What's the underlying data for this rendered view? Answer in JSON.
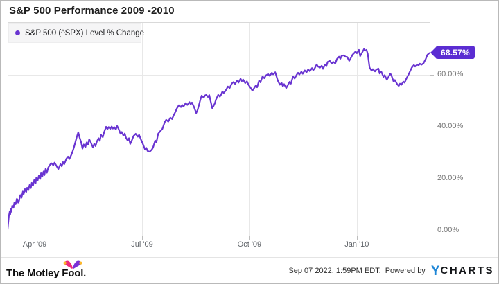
{
  "header": {
    "title": "S&P 500 Performance 2009 -2010"
  },
  "legend": {
    "label": "S&P 500 (^SPX) Level % Change"
  },
  "badge": {
    "text": "68.57%"
  },
  "footer": {
    "brand_text": "The Motley Fool.",
    "timestamp": "Sep 07 2022, 1:59PM EDT.",
    "powered_by": "Powered by",
    "ycharts_y": "Y",
    "ycharts_rest": "CHARTS"
  },
  "colors": {
    "series_purple": "#6934d1",
    "badge_purple": "#5b2dd2",
    "ycharts_blue": "#1e86d6",
    "fool_pink": "#ee2a7b",
    "fool_purple": "#7b2fd6",
    "fool_gold": "#fdb92a",
    "grid": "#e8e8e8",
    "frame": "#d9d9d9",
    "axis": "#8f8f8f"
  },
  "chart_data": {
    "type": "line",
    "title": "S&P 500 Performance 2009 -2010",
    "xlabel": "",
    "ylabel": "",
    "y_unit": "% change",
    "xlim": [
      0,
      1
    ],
    "ylim": [
      -2.13,
      80.27
    ],
    "grid": true,
    "legend_position": "top-left",
    "x_ticks": [
      {
        "label": "Apr '09",
        "t": 0.064
      },
      {
        "label": "Jul '09",
        "t": 0.318
      },
      {
        "label": "Oct '09",
        "t": 0.572
      },
      {
        "label": "Jan '10",
        "t": 0.826
      }
    ],
    "y_ticks": [
      {
        "label": "0.00%",
        "value": 0
      },
      {
        "label": "20.00%",
        "value": 20
      },
      {
        "label": "40.00%",
        "value": 40
      },
      {
        "label": "60.00%",
        "value": 60
      }
    ],
    "series": [
      {
        "name": "S&P 500 (^SPX) Level % Change",
        "color": "#6934d1",
        "last_value": 68.57,
        "last_value_label": "68.57%",
        "points": [
          [
            0.0,
            0.5
          ],
          [
            0.003,
            5.6
          ],
          [
            0.005,
            7.5
          ],
          [
            0.006,
            6.2
          ],
          [
            0.008,
            8.3
          ],
          [
            0.009,
            7.3
          ],
          [
            0.011,
            9.6
          ],
          [
            0.014,
            8.8
          ],
          [
            0.016,
            10.9
          ],
          [
            0.019,
            10.2
          ],
          [
            0.022,
            12.3
          ],
          [
            0.025,
            10.8
          ],
          [
            0.027,
            11.5
          ],
          [
            0.03,
            13.7
          ],
          [
            0.033,
            12.7
          ],
          [
            0.036,
            15.1
          ],
          [
            0.038,
            14.1
          ],
          [
            0.041,
            16.0
          ],
          [
            0.044,
            14.9
          ],
          [
            0.046,
            16.5
          ],
          [
            0.049,
            15.6
          ],
          [
            0.052,
            17.6
          ],
          [
            0.055,
            16.4
          ],
          [
            0.057,
            18.4
          ],
          [
            0.06,
            17.3
          ],
          [
            0.063,
            19.5
          ],
          [
            0.066,
            18.2
          ],
          [
            0.068,
            20.5
          ],
          [
            0.071,
            19.3
          ],
          [
            0.074,
            21.2
          ],
          [
            0.077,
            19.9
          ],
          [
            0.079,
            22.1
          ],
          [
            0.082,
            20.8
          ],
          [
            0.085,
            22.8
          ],
          [
            0.087,
            21.4
          ],
          [
            0.09,
            23.9
          ],
          [
            0.093,
            22.3
          ],
          [
            0.096,
            24.3
          ],
          [
            0.098,
            24.8
          ],
          [
            0.103,
            26.0
          ],
          [
            0.108,
            25.2
          ],
          [
            0.111,
            26.2
          ],
          [
            0.115,
            25.1
          ],
          [
            0.12,
            23.7
          ],
          [
            0.125,
            25.6
          ],
          [
            0.128,
            24.8
          ],
          [
            0.131,
            26.4
          ],
          [
            0.134,
            25.6
          ],
          [
            0.139,
            27.7
          ],
          [
            0.143,
            28.5
          ],
          [
            0.146,
            27.6
          ],
          [
            0.151,
            29.3
          ],
          [
            0.154,
            30.6
          ],
          [
            0.157,
            32.2
          ],
          [
            0.161,
            34.5
          ],
          [
            0.164,
            36.3
          ],
          [
            0.167,
            37.9
          ],
          [
            0.17,
            36.0
          ],
          [
            0.174,
            34.0
          ],
          [
            0.177,
            31.6
          ],
          [
            0.18,
            33.2
          ],
          [
            0.184,
            32.2
          ],
          [
            0.187,
            34.0
          ],
          [
            0.19,
            33.1
          ],
          [
            0.193,
            35.2
          ],
          [
            0.197,
            33.9
          ],
          [
            0.202,
            32.0
          ],
          [
            0.205,
            33.5
          ],
          [
            0.208,
            32.6
          ],
          [
            0.211,
            34.3
          ],
          [
            0.215,
            35.6
          ],
          [
            0.218,
            34.6
          ],
          [
            0.221,
            36.9
          ],
          [
            0.225,
            36.0
          ],
          [
            0.228,
            37.8
          ],
          [
            0.233,
            40.0
          ],
          [
            0.236,
            39.1
          ],
          [
            0.239,
            39.9
          ],
          [
            0.243,
            39.2
          ],
          [
            0.246,
            40.1
          ],
          [
            0.249,
            39.3
          ],
          [
            0.252,
            39.9
          ],
          [
            0.256,
            39.0
          ],
          [
            0.259,
            40.3
          ],
          [
            0.262,
            39.4
          ],
          [
            0.267,
            37.3
          ],
          [
            0.27,
            38.0
          ],
          [
            0.274,
            36.6
          ],
          [
            0.277,
            37.4
          ],
          [
            0.28,
            35.8
          ],
          [
            0.284,
            34.7
          ],
          [
            0.287,
            35.6
          ],
          [
            0.29,
            33.4
          ],
          [
            0.293,
            34.4
          ],
          [
            0.298,
            36.5
          ],
          [
            0.303,
            37.3
          ],
          [
            0.308,
            36.2
          ],
          [
            0.311,
            36.9
          ],
          [
            0.315,
            35.2
          ],
          [
            0.32,
            33.4
          ],
          [
            0.325,
            31.2
          ],
          [
            0.328,
            31.9
          ],
          [
            0.331,
            30.7
          ],
          [
            0.336,
            30.4
          ],
          [
            0.341,
            31.2
          ],
          [
            0.344,
            32.0
          ],
          [
            0.349,
            34.7
          ],
          [
            0.352,
            34.0
          ],
          [
            0.356,
            37.3
          ],
          [
            0.361,
            38.3
          ],
          [
            0.366,
            39.2
          ],
          [
            0.369,
            40.6
          ],
          [
            0.372,
            41.9
          ],
          [
            0.375,
            42.7
          ],
          [
            0.38,
            42.0
          ],
          [
            0.385,
            43.5
          ],
          [
            0.389,
            43.0
          ],
          [
            0.393,
            44.5
          ],
          [
            0.397,
            45.8
          ],
          [
            0.4,
            47.0
          ],
          [
            0.405,
            48.3
          ],
          [
            0.41,
            47.6
          ],
          [
            0.413,
            48.4
          ],
          [
            0.416,
            47.8
          ],
          [
            0.421,
            49.1
          ],
          [
            0.425,
            48.4
          ],
          [
            0.43,
            49.5
          ],
          [
            0.433,
            48.7
          ],
          [
            0.436,
            49.3
          ],
          [
            0.441,
            47.6
          ],
          [
            0.446,
            45.3
          ],
          [
            0.449,
            46.3
          ],
          [
            0.452,
            48.0
          ],
          [
            0.456,
            50.5
          ],
          [
            0.459,
            52.0
          ],
          [
            0.464,
            51.2
          ],
          [
            0.467,
            52.1
          ],
          [
            0.47,
            52.3
          ],
          [
            0.474,
            51.5
          ],
          [
            0.477,
            52.2
          ],
          [
            0.48,
            50.0
          ],
          [
            0.484,
            47.2
          ],
          [
            0.487,
            48.0
          ],
          [
            0.49,
            49.0
          ],
          [
            0.493,
            50.5
          ],
          [
            0.498,
            52.3
          ],
          [
            0.502,
            51.6
          ],
          [
            0.505,
            52.4
          ],
          [
            0.508,
            53.6
          ],
          [
            0.511,
            53.0
          ],
          [
            0.515,
            53.8
          ],
          [
            0.518,
            54.6
          ],
          [
            0.521,
            55.5
          ],
          [
            0.525,
            54.9
          ],
          [
            0.53,
            56.6
          ],
          [
            0.534,
            57.2
          ],
          [
            0.538,
            56.5
          ],
          [
            0.543,
            57.8
          ],
          [
            0.546,
            57.0
          ],
          [
            0.551,
            58.5
          ],
          [
            0.554,
            57.6
          ],
          [
            0.557,
            58.2
          ],
          [
            0.562,
            56.8
          ],
          [
            0.566,
            57.5
          ],
          [
            0.57,
            56.1
          ],
          [
            0.575,
            54.9
          ],
          [
            0.579,
            53.9
          ],
          [
            0.582,
            54.6
          ],
          [
            0.587,
            55.9
          ],
          [
            0.59,
            55.2
          ],
          [
            0.595,
            57.8
          ],
          [
            0.598,
            57.1
          ],
          [
            0.603,
            59.4
          ],
          [
            0.607,
            58.7
          ],
          [
            0.611,
            59.8
          ],
          [
            0.616,
            60.3
          ],
          [
            0.62,
            59.6
          ],
          [
            0.625,
            60.8
          ],
          [
            0.628,
            60.2
          ],
          [
            0.633,
            61.0
          ],
          [
            0.636,
            59.4
          ],
          [
            0.639,
            57.8
          ],
          [
            0.644,
            56.2
          ],
          [
            0.648,
            56.9
          ],
          [
            0.651,
            55.6
          ],
          [
            0.654,
            56.4
          ],
          [
            0.659,
            54.9
          ],
          [
            0.662,
            55.8
          ],
          [
            0.667,
            57.3
          ],
          [
            0.67,
            56.6
          ],
          [
            0.675,
            59.4
          ],
          [
            0.679,
            58.6
          ],
          [
            0.684,
            60.1
          ],
          [
            0.687,
            60.8
          ],
          [
            0.69,
            60.1
          ],
          [
            0.695,
            61.2
          ],
          [
            0.698,
            60.4
          ],
          [
            0.703,
            61.7
          ],
          [
            0.707,
            61.0
          ],
          [
            0.711,
            62.1
          ],
          [
            0.715,
            61.4
          ],
          [
            0.72,
            62.6
          ],
          [
            0.723,
            61.8
          ],
          [
            0.726,
            62.4
          ],
          [
            0.731,
            64.0
          ],
          [
            0.734,
            63.2
          ],
          [
            0.739,
            62.8
          ],
          [
            0.743,
            63.5
          ],
          [
            0.746,
            62.3
          ],
          [
            0.751,
            64.0
          ],
          [
            0.754,
            63.3
          ],
          [
            0.757,
            65.0
          ],
          [
            0.762,
            65.4
          ],
          [
            0.767,
            64.3
          ],
          [
            0.77,
            65.0
          ],
          [
            0.775,
            64.4
          ],
          [
            0.779,
            66.1
          ],
          [
            0.784,
            67.0
          ],
          [
            0.787,
            66.2
          ],
          [
            0.79,
            67.3
          ],
          [
            0.795,
            67.5
          ],
          [
            0.8,
            66.9
          ],
          [
            0.803,
            66.9
          ],
          [
            0.808,
            65.4
          ],
          [
            0.811,
            66.2
          ],
          [
            0.816,
            67.8
          ],
          [
            0.82,
            68.4
          ],
          [
            0.823,
            69.0
          ],
          [
            0.826,
            68.3
          ],
          [
            0.831,
            69.6
          ],
          [
            0.834,
            67.2
          ],
          [
            0.839,
            68.7
          ],
          [
            0.843,
            69.9
          ],
          [
            0.846,
            69.3
          ],
          [
            0.849,
            69.6
          ],
          [
            0.852,
            68.0
          ],
          [
            0.856,
            62.8
          ],
          [
            0.861,
            61.6
          ],
          [
            0.864,
            62.2
          ],
          [
            0.869,
            61.3
          ],
          [
            0.872,
            62.0
          ],
          [
            0.877,
            62.4
          ],
          [
            0.88,
            60.5
          ],
          [
            0.884,
            61.2
          ],
          [
            0.889,
            59.2
          ],
          [
            0.892,
            59.9
          ],
          [
            0.897,
            58.1
          ],
          [
            0.9,
            58.9
          ],
          [
            0.905,
            60.5
          ],
          [
            0.908,
            59.7
          ],
          [
            0.913,
            57.4
          ],
          [
            0.916,
            58.0
          ],
          [
            0.921,
            56.5
          ],
          [
            0.925,
            55.7
          ],
          [
            0.928,
            56.6
          ],
          [
            0.931,
            56.1
          ],
          [
            0.936,
            57.4
          ],
          [
            0.939,
            57.0
          ],
          [
            0.944,
            58.8
          ],
          [
            0.948,
            60.0
          ],
          [
            0.952,
            61.4
          ],
          [
            0.956,
            62.8
          ],
          [
            0.961,
            63.8
          ],
          [
            0.964,
            63.2
          ],
          [
            0.969,
            64.0
          ],
          [
            0.972,
            63.6
          ],
          [
            0.975,
            64.3
          ],
          [
            0.979,
            63.9
          ],
          [
            0.984,
            64.5
          ],
          [
            0.987,
            65.5
          ],
          [
            0.989,
            66.1
          ],
          [
            0.993,
            67.7
          ],
          [
            0.997,
            68.3
          ],
          [
            1.0,
            68.57
          ]
        ]
      }
    ]
  }
}
